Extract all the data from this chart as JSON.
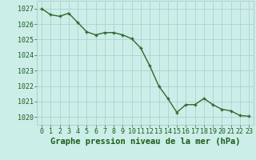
{
  "x": [
    0,
    1,
    2,
    3,
    4,
    5,
    6,
    7,
    8,
    9,
    10,
    11,
    12,
    13,
    14,
    15,
    16,
    17,
    18,
    19,
    20,
    21,
    22,
    23
  ],
  "y": [
    1027.0,
    1026.6,
    1026.5,
    1026.7,
    1026.1,
    1025.5,
    1025.3,
    1025.45,
    1025.45,
    1025.3,
    1025.05,
    1024.45,
    1023.3,
    1022.0,
    1021.2,
    1020.3,
    1020.8,
    1020.8,
    1021.2,
    1020.8,
    1020.5,
    1020.4,
    1020.1,
    1020.05
  ],
  "line_color": "#2d6a2d",
  "marker_color": "#2d6a2d",
  "background_color": "#cceee8",
  "grid_color": "#aacccc",
  "title": "Graphe pression niveau de la mer (hPa)",
  "ylim_min": 1019.5,
  "ylim_max": 1027.5,
  "xlim_min": -0.5,
  "xlim_max": 23.5,
  "xtick_labels": [
    "0",
    "1",
    "2",
    "3",
    "4",
    "5",
    "6",
    "7",
    "8",
    "9",
    "10",
    "11",
    "12",
    "13",
    "14",
    "15",
    "16",
    "17",
    "18",
    "19",
    "20",
    "21",
    "22",
    "23"
  ],
  "title_fontsize": 7.5,
  "tick_fontsize": 6,
  "title_color": "#1a5c1a",
  "tick_color": "#1a5c1a",
  "line_width": 1.0,
  "marker_size": 2.5
}
